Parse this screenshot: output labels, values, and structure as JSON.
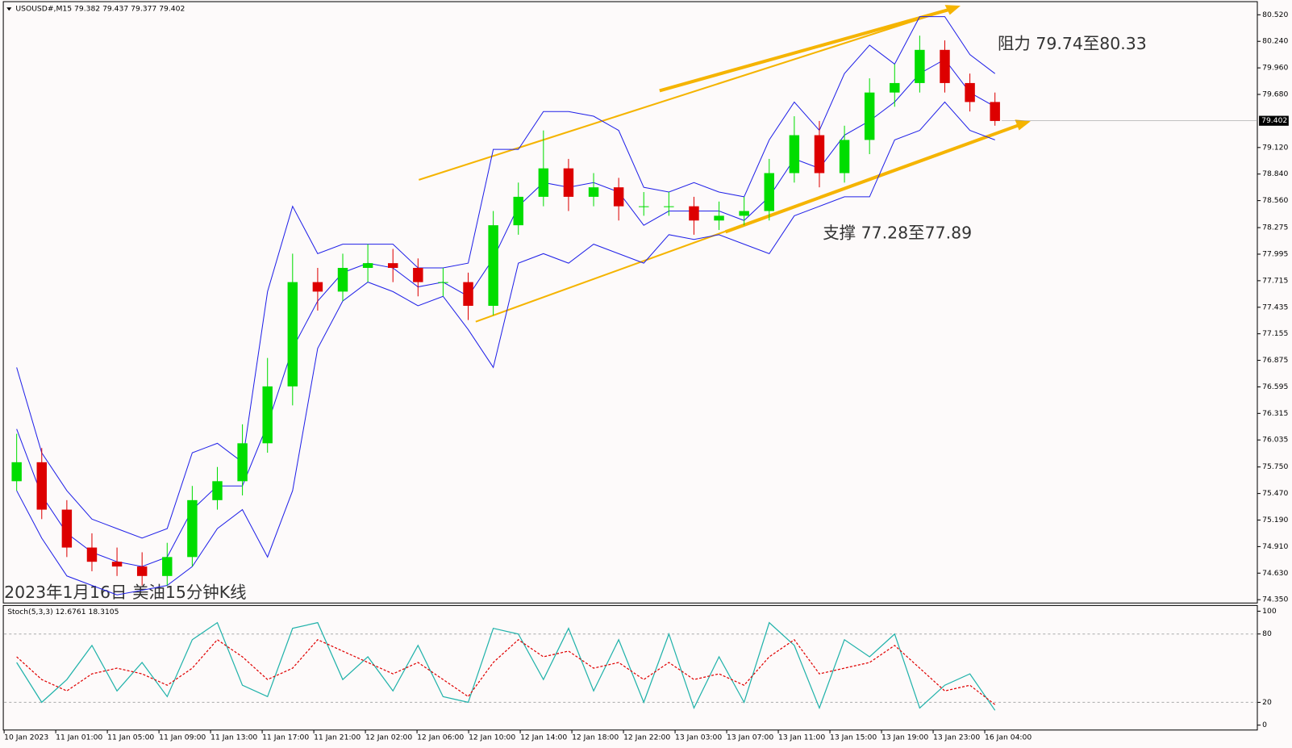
{
  "chart_data": [
    {
      "type": "candlestick",
      "header": "USOUSD#,M15  79.382 79.437 79.377 79.402",
      "title": "2023年1月16日 美油15分钟K线",
      "annotations": [
        "阻力 79.74至80.33",
        "支撑 77.28至77.89"
      ],
      "last_price": 79.402,
      "up_color": "#00dd00",
      "down_color": "#dd0000",
      "band_color": "#2020e8",
      "channel_color": "#f5b400",
      "open": [
        75.6,
        75.8,
        75.3,
        74.9,
        74.75,
        74.7,
        74.6,
        74.8,
        75.4,
        75.6,
        76.0,
        76.6,
        77.7,
        77.6,
        77.85,
        77.9,
        77.85,
        77.7,
        77.7,
        77.45,
        78.3,
        78.6,
        78.9,
        78.6,
        78.7,
        78.5,
        78.5,
        78.5,
        78.35,
        78.4,
        78.45,
        78.85,
        79.25,
        78.85,
        79.2,
        79.7,
        79.8,
        80.15,
        79.8,
        79.6
      ],
      "high": [
        76.1,
        75.95,
        75.4,
        75.05,
        74.9,
        74.85,
        74.95,
        75.55,
        75.75,
        76.2,
        76.9,
        78.0,
        77.85,
        78.0,
        78.1,
        78.05,
        77.95,
        77.85,
        77.8,
        78.45,
        78.75,
        79.3,
        79.0,
        78.85,
        78.8,
        78.65,
        78.65,
        78.6,
        78.55,
        78.6,
        79.0,
        79.45,
        79.4,
        79.35,
        79.85,
        80.0,
        80.3,
        80.25,
        79.9,
        79.7
      ],
      "low": [
        75.5,
        75.2,
        74.8,
        74.65,
        74.6,
        74.5,
        74.5,
        74.7,
        75.3,
        75.45,
        75.9,
        76.4,
        77.4,
        77.5,
        77.7,
        77.7,
        77.55,
        77.55,
        77.3,
        77.35,
        78.2,
        78.5,
        78.45,
        78.5,
        78.35,
        78.4,
        78.4,
        78.2,
        78.25,
        78.3,
        78.35,
        78.75,
        78.7,
        78.75,
        79.05,
        79.55,
        79.7,
        79.7,
        79.5,
        79.35
      ],
      "close": [
        75.8,
        75.3,
        74.9,
        74.75,
        74.7,
        74.6,
        74.8,
        75.4,
        75.6,
        76.0,
        76.6,
        77.7,
        77.6,
        77.85,
        77.9,
        77.85,
        77.7,
        77.7,
        77.45,
        78.3,
        78.6,
        78.9,
        78.6,
        78.7,
        78.5,
        78.5,
        78.5,
        78.35,
        78.4,
        78.45,
        78.85,
        79.25,
        78.85,
        79.2,
        79.7,
        79.8,
        80.15,
        79.8,
        79.6,
        79.4
      ],
      "bollinger": {
        "upper": [
          76.8,
          75.9,
          75.5,
          75.2,
          75.1,
          75.0,
          75.1,
          75.9,
          76.0,
          75.8,
          77.6,
          78.5,
          78.0,
          78.1,
          78.1,
          78.1,
          77.85,
          77.85,
          77.9,
          79.1,
          79.1,
          79.5,
          79.5,
          79.45,
          79.3,
          78.7,
          78.65,
          78.75,
          78.65,
          78.6,
          79.2,
          79.6,
          79.3,
          79.9,
          80.2,
          80.0,
          80.5,
          80.5,
          80.1,
          79.9
        ],
        "middle": [
          76.15,
          75.45,
          75.05,
          74.85,
          74.75,
          74.7,
          74.8,
          75.3,
          75.55,
          75.55,
          76.2,
          77.0,
          77.5,
          77.8,
          77.9,
          77.85,
          77.65,
          77.7,
          77.55,
          77.95,
          78.5,
          78.75,
          78.7,
          78.75,
          78.65,
          78.3,
          78.45,
          78.45,
          78.45,
          78.35,
          78.6,
          79.0,
          78.9,
          79.25,
          79.4,
          79.6,
          79.9,
          80.05,
          79.7,
          79.55
        ],
        "lower": [
          75.5,
          75.0,
          74.6,
          74.5,
          74.4,
          74.45,
          74.5,
          74.7,
          75.1,
          75.3,
          74.8,
          75.5,
          77.0,
          77.5,
          77.7,
          77.6,
          77.45,
          77.55,
          77.2,
          76.8,
          77.9,
          78.0,
          77.9,
          78.1,
          78.0,
          77.9,
          78.2,
          78.15,
          78.2,
          78.1,
          78.0,
          78.4,
          78.5,
          78.6,
          78.6,
          79.2,
          79.3,
          79.6,
          79.3,
          79.2
        ]
      },
      "ylim": [
        74.315,
        80.65
      ],
      "yticks": [
        {
          "value": 80.52,
          "label": "80.520"
        },
        {
          "value": 80.24,
          "label": "80.240"
        },
        {
          "value": 79.96,
          "label": "79.960"
        },
        {
          "value": 79.68,
          "label": "79.680"
        },
        {
          "value": 79.12,
          "label": "79.120"
        },
        {
          "value": 78.84,
          "label": "78.840"
        },
        {
          "value": 78.56,
          "label": "78.560"
        },
        78.275,
        77.995,
        77.715,
        77.435,
        77.155,
        76.875,
        76.595,
        76.315,
        76.035,
        {
          "value": 75.75,
          "label": "75.750"
        },
        {
          "value": 75.47,
          "label": "75.470"
        },
        {
          "value": 75.19,
          "label": "75.190"
        },
        {
          "value": 74.91,
          "label": "74.910"
        },
        {
          "value": 74.63,
          "label": "74.630"
        },
        {
          "value": 74.35,
          "label": "74.350"
        }
      ]
    },
    {
      "type": "line",
      "title": "Stoch(5,3,3) 12.6761 18.3105",
      "series": [
        {
          "color": "#20b2aa",
          "dash": false,
          "values": [
            55,
            20,
            40,
            70,
            30,
            55,
            25,
            75,
            90,
            35,
            25,
            85,
            90,
            40,
            60,
            30,
            70,
            25,
            20,
            85,
            80,
            40,
            85,
            30,
            75,
            20,
            80,
            15,
            60,
            20,
            90,
            70,
            15,
            75,
            60,
            80,
            15,
            35,
            45,
            13
          ]
        },
        {
          "color": "#e00000",
          "dash": true,
          "values": [
            60,
            40,
            30,
            45,
            50,
            45,
            35,
            50,
            75,
            60,
            40,
            50,
            75,
            65,
            55,
            45,
            55,
            40,
            25,
            55,
            75,
            60,
            65,
            50,
            55,
            40,
            55,
            40,
            45,
            35,
            60,
            75,
            45,
            50,
            55,
            70,
            50,
            30,
            35,
            18
          ]
        }
      ],
      "levels": [
        80,
        20
      ],
      "ylim": [
        -4.3,
        104.3
      ],
      "yticks": [
        100,
        80,
        20,
        0
      ],
      "time_labels": [
        "10 Jan 2023",
        "11 Jan 01:00",
        "11 Jan 05:00",
        "11 Jan 09:00",
        "11 Jan 13:00",
        "11 Jan 17:00",
        "11 Jan 21:00",
        "12 Jan 02:00",
        "12 Jan 06:00",
        "12 Jan 10:00",
        "12 Jan 14:00",
        "12 Jan 18:00",
        "12 Jan 22:00",
        "13 Jan 03:00",
        "13 Jan 07:00",
        "13 Jan 11:00",
        "13 Jan 15:00",
        "13 Jan 19:00",
        "13 Jan 23:00",
        "16 Jan 04:00"
      ]
    }
  ]
}
